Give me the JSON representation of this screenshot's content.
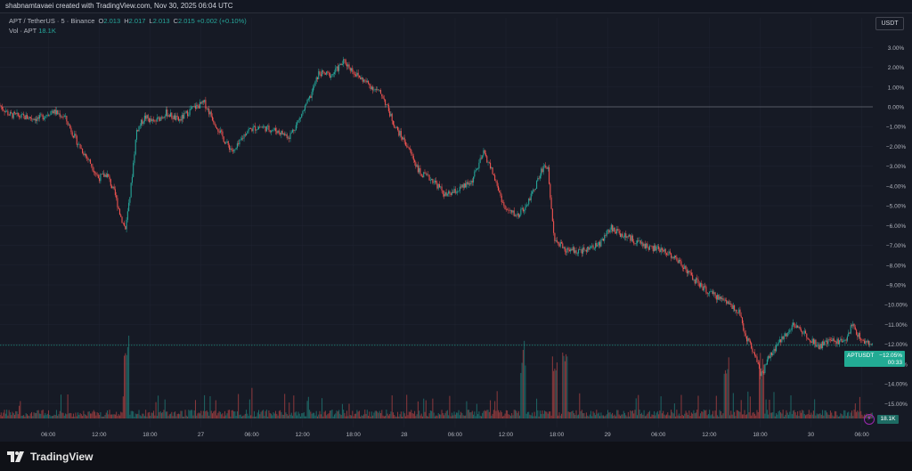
{
  "header": {
    "attribution": "shabnamtavaei created with TradingView.com, Nov 30, 2025 06:04 UTC"
  },
  "legend": {
    "symbol": "APT / TetherUS · 5 · Binance",
    "o_label": "O",
    "o_value": "2.013",
    "h_label": "H",
    "h_value": "2.017",
    "l_label": "L",
    "l_value": "2.013",
    "c_label": "C",
    "c_value": "2.015",
    "change": "+0.002 (+0.10%)",
    "vol_label": "Vol · APT",
    "vol_value": "18.1K"
  },
  "currency": "USDT",
  "price_label": {
    "symbol": "APTUSDT",
    "percent": "−12.05%",
    "countdown": "00:33"
  },
  "vol_badge": "18.1K",
  "footer": {
    "brand": "TradingView"
  },
  "colors": {
    "up": "#26a69a",
    "down": "#ef5350",
    "grid": "#1f2330",
    "zero_line": "#6b6f7a",
    "background": "#161a25"
  },
  "chart_data": {
    "type": "candlestick",
    "y_axis_unit": "%",
    "y_ticks": [
      "3.00%",
      "2.00%",
      "1.00%",
      "0.00%",
      "−1.00%",
      "−2.00%",
      "−3.00%",
      "−4.00%",
      "−5.00%",
      "−6.00%",
      "−7.00%",
      "−8.00%",
      "−9.00%",
      "−10.00%",
      "−11.00%",
      "−12.00%",
      "−13.00%",
      "−14.00%",
      "−15.00%"
    ],
    "y_tick_values": [
      3,
      2,
      1,
      0,
      -1,
      -2,
      -3,
      -4,
      -5,
      -6,
      -7,
      -8,
      -9,
      -10,
      -11,
      -12,
      -13,
      -14,
      -15
    ],
    "ylim": [
      -15.3,
      3.6
    ],
    "x_ticks": [
      "06:00",
      "12:00",
      "18:00",
      "27",
      "06:00",
      "12:00",
      "18:00",
      "28",
      "06:00",
      "12:00",
      "18:00",
      "29",
      "06:00",
      "12:00",
      "18:00",
      "30",
      "06:00"
    ],
    "x_tick_hours": [
      6,
      12,
      18,
      24,
      30,
      36,
      42,
      48,
      54,
      60,
      66,
      72,
      78,
      84,
      90,
      96,
      102
    ],
    "xlim_hours": [
      0.3,
      103.3
    ],
    "path_hours": [
      0.3,
      1.5,
      3,
      5,
      6.5,
      8,
      9.5,
      11,
      12,
      13,
      14,
      14.6,
      15.2,
      15.8,
      16.5,
      17.5,
      18.5,
      20,
      21.5,
      23,
      24.5,
      26,
      27,
      28,
      29.5,
      31,
      33,
      34.5,
      35.5,
      37,
      38,
      39.5,
      41,
      42.5,
      44,
      45.5,
      47,
      48.5,
      50,
      51.5,
      53,
      54.5,
      56,
      57.5,
      58.5,
      60,
      61.5,
      63,
      64.5,
      65,
      65.8,
      67,
      69,
      71,
      72.5,
      73.5,
      75,
      77,
      79,
      81,
      82,
      84,
      86,
      87.5,
      88.5,
      89.5,
      90.2,
      91,
      92.5,
      94,
      95.5,
      97,
      98.5,
      100,
      101,
      102,
      103.3
    ],
    "path_values": [
      0.1,
      -0.4,
      -0.5,
      -0.6,
      -0.2,
      -0.5,
      -1.8,
      -2.8,
      -3.6,
      -3.4,
      -4.5,
      -5.5,
      -6.2,
      -4.2,
      -1.2,
      -0.5,
      -0.8,
      -0.3,
      -0.7,
      -0.1,
      0.2,
      -1.0,
      -1.8,
      -2.3,
      -1.2,
      -1.0,
      -1.2,
      -1.5,
      -0.8,
      0.5,
      1.7,
      1.6,
      2.3,
      1.6,
      1.1,
      0.6,
      -1.0,
      -2.0,
      -3.4,
      -3.7,
      -4.5,
      -4.2,
      -3.8,
      -2.3,
      -3.3,
      -5.2,
      -5.5,
      -4.6,
      -3.0,
      -3.0,
      -6.6,
      -7.2,
      -7.3,
      -7.0,
      -6.1,
      -6.4,
      -6.7,
      -7.1,
      -7.3,
      -8.0,
      -8.6,
      -9.4,
      -9.8,
      -10.3,
      -11.7,
      -12.5,
      -13.6,
      -12.8,
      -11.8,
      -11.0,
      -11.5,
      -12.1,
      -11.8,
      -11.9,
      -11.0,
      -11.8,
      -12.05
    ],
    "last_value": -12.05,
    "volume_unit": "APT",
    "volume_last": "18.1K",
    "volume_spikes_hours": [
      15.2,
      67,
      65.8,
      86,
      90.2,
      62
    ],
    "grid": true,
    "zero_line": true
  }
}
